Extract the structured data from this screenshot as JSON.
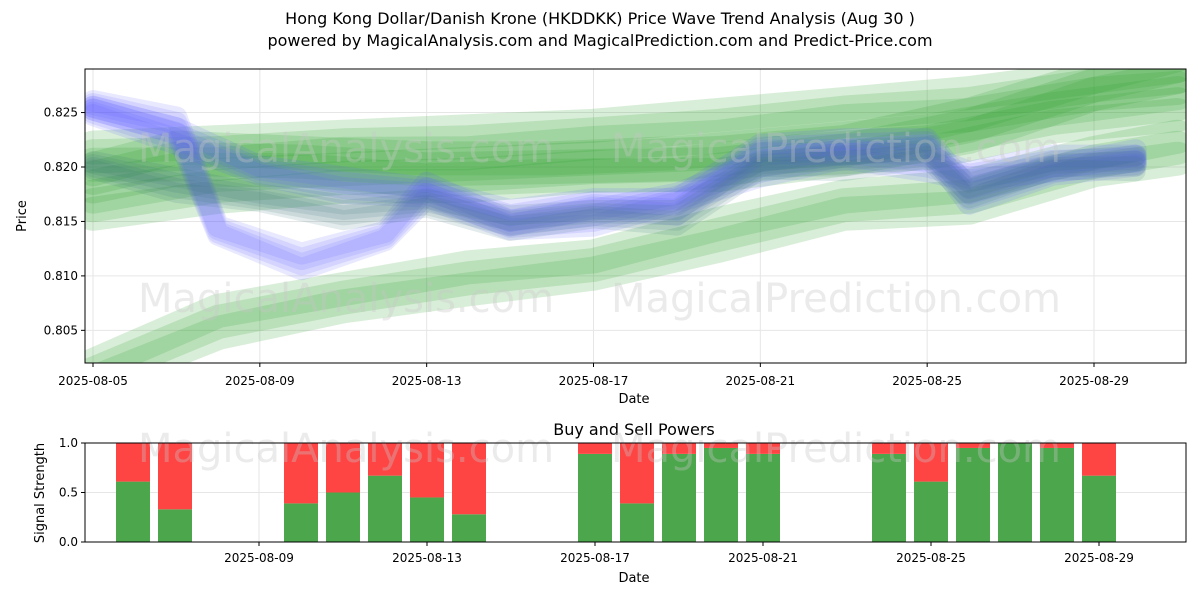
{
  "header": {
    "title": "Hong Kong Dollar/Danish Krone (HKDDKK) Price Wave Trend Analysis (Aug 30 )",
    "subtitle": "powered by MagicalAnalysis.com and MagicalPrediction.com and Predict-Price.com"
  },
  "watermarks": [
    "MagicalAnalysis.com",
    "MagicalPrediction.com"
  ],
  "chart_data": [
    {
      "type": "area",
      "title": "",
      "xlabel": "Date",
      "ylabel": "Price",
      "x_ticks": [
        "2025-08-05",
        "2025-08-09",
        "2025-08-13",
        "2025-08-17",
        "2025-08-21",
        "2025-08-25",
        "2025-08-29"
      ],
      "y_ticks": [
        "0.805",
        "0.810",
        "0.815",
        "0.820",
        "0.825"
      ],
      "xlim": [
        "2025-08-04",
        "2025-08-31"
      ],
      "ylim": [
        0.802,
        0.829
      ],
      "grid": true,
      "colors": {
        "green_band": "#2e9e2e",
        "blue_band": "#5a5aff",
        "dark_band": "#3a6e7a"
      },
      "series": [
        {
          "color": "green",
          "x": [
            "2025-08-05",
            "2025-08-08",
            "2025-08-11",
            "2025-08-14",
            "2025-08-17",
            "2025-08-20",
            "2025-08-23",
            "2025-08-26",
            "2025-08-29",
            "2025-08-31"
          ],
          "values": [
            0.8005,
            0.8055,
            0.8075,
            0.8095,
            0.8105,
            0.8135,
            0.816,
            0.817,
            0.82,
            0.8215
          ]
        },
        {
          "color": "green",
          "x": [
            "2025-08-05",
            "2025-08-08",
            "2025-08-11",
            "2025-08-14",
            "2025-08-17",
            "2025-08-20",
            "2025-08-23",
            "2025-08-26",
            "2025-08-29",
            "2025-08-31"
          ],
          "values": [
            0.8205,
            0.821,
            0.8215,
            0.822,
            0.8225,
            0.8235,
            0.8245,
            0.8255,
            0.827,
            0.828
          ]
        },
        {
          "color": "green",
          "x": [
            "2025-08-05",
            "2025-08-08",
            "2025-08-11",
            "2025-08-14",
            "2025-08-17",
            "2025-08-20",
            "2025-08-23",
            "2025-08-26",
            "2025-08-29",
            "2025-08-31"
          ],
          "values": [
            0.816,
            0.818,
            0.8185,
            0.819,
            0.8195,
            0.82,
            0.821,
            0.8235,
            0.827,
            0.829
          ]
        },
        {
          "color": "green",
          "x": [
            "2025-08-05",
            "2025-08-07",
            "2025-08-10",
            "2025-08-13",
            "2025-08-16",
            "2025-08-19",
            "2025-08-22",
            "2025-08-25",
            "2025-08-28",
            "2025-08-31"
          ],
          "values": [
            0.8185,
            0.8205,
            0.82,
            0.8195,
            0.8195,
            0.82,
            0.821,
            0.822,
            0.824,
            0.8255
          ]
        },
        {
          "color": "blue",
          "x": [
            "2025-08-05",
            "2025-08-07",
            "2025-08-08",
            "2025-08-10",
            "2025-08-12",
            "2025-08-13",
            "2025-08-15",
            "2025-08-17",
            "2025-08-19",
            "2025-08-21",
            "2025-08-23",
            "2025-08-25",
            "2025-08-26",
            "2025-08-28",
            "2025-08-30"
          ],
          "values": [
            0.8255,
            0.824,
            0.814,
            0.8115,
            0.8135,
            0.818,
            0.8145,
            0.8155,
            0.817,
            0.82,
            0.821,
            0.8205,
            0.819,
            0.8205,
            0.8205
          ]
        },
        {
          "color": "blue",
          "x": [
            "2025-08-05",
            "2025-08-07",
            "2025-08-09",
            "2025-08-11",
            "2025-08-13",
            "2025-08-15",
            "2025-08-17",
            "2025-08-19",
            "2025-08-21",
            "2025-08-23",
            "2025-08-25",
            "2025-08-26",
            "2025-08-28",
            "2025-08-30"
          ],
          "values": [
            0.825,
            0.823,
            0.8195,
            0.8185,
            0.8175,
            0.8155,
            0.8165,
            0.8165,
            0.8215,
            0.822,
            0.822,
            0.8175,
            0.8195,
            0.821
          ]
        },
        {
          "color": "dark",
          "x": [
            "2025-08-05",
            "2025-08-07",
            "2025-08-09",
            "2025-08-11",
            "2025-08-13",
            "2025-08-15",
            "2025-08-17",
            "2025-08-19",
            "2025-08-21",
            "2025-08-23",
            "2025-08-25",
            "2025-08-26",
            "2025-08-28",
            "2025-08-30"
          ],
          "values": [
            0.82,
            0.8185,
            0.817,
            0.816,
            0.8165,
            0.815,
            0.8155,
            0.8155,
            0.82,
            0.8205,
            0.821,
            0.818,
            0.82,
            0.8205
          ]
        }
      ]
    },
    {
      "type": "bar",
      "title": "Buy and Sell Powers",
      "xlabel": "Date",
      "ylabel": "Signal Strength",
      "x_ticks": [
        "2025-08-09",
        "2025-08-13",
        "2025-08-17",
        "2025-08-21",
        "2025-08-25",
        "2025-08-29"
      ],
      "y_ticks": [
        "0.0",
        "0.5",
        "1.0"
      ],
      "ylim": [
        0,
        1
      ],
      "grid": true,
      "colors": {
        "buy": "#4ca64c",
        "sell": "#ff4444"
      },
      "categories": [
        "2025-08-06",
        "2025-08-07",
        "2025-08-10",
        "2025-08-11",
        "2025-08-12",
        "2025-08-13",
        "2025-08-14",
        "2025-08-17",
        "2025-08-18",
        "2025-08-19",
        "2025-08-20",
        "2025-08-21",
        "2025-08-24",
        "2025-08-25",
        "2025-08-26",
        "2025-08-27",
        "2025-08-28",
        "2025-08-29"
      ],
      "series": [
        {
          "name": "Buy",
          "values": [
            0.61,
            0.33,
            0.39,
            0.5,
            0.67,
            0.45,
            0.28,
            0.89,
            0.39,
            0.89,
            0.95,
            0.89,
            0.89,
            0.61,
            0.95,
            1.0,
            0.95,
            0.67
          ]
        },
        {
          "name": "Sell",
          "values": [
            0.39,
            0.67,
            0.61,
            0.5,
            0.33,
            0.55,
            0.72,
            0.11,
            0.61,
            0.11,
            0.05,
            0.11,
            0.11,
            0.39,
            0.05,
            0.0,
            0.05,
            0.33
          ]
        }
      ]
    }
  ]
}
